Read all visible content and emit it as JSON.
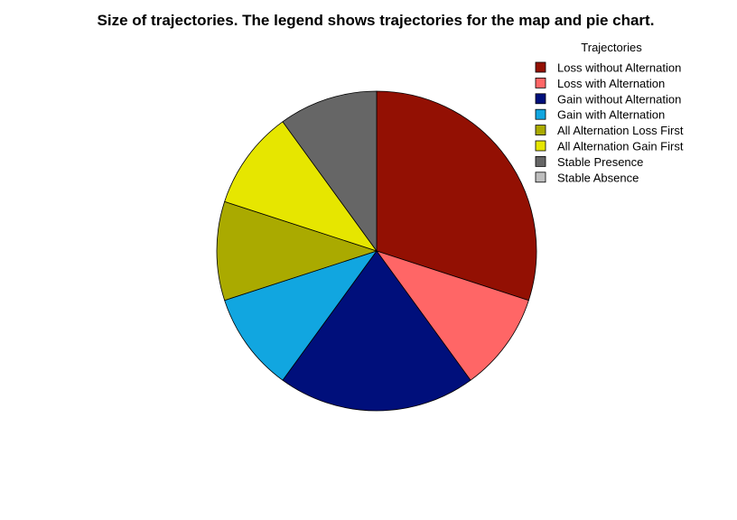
{
  "chart_data": {
    "type": "pie",
    "title": "Size of trajectories. The legend shows trajectories for the map and pie chart.",
    "legend": {
      "title": "Trajectories",
      "placement": "top-right"
    },
    "start": "12 o'clock",
    "direction": "clockwise",
    "slices": [
      {
        "label": "Loss without Alternation",
        "value": 30,
        "color": "#931003"
      },
      {
        "label": "Loss with Alternation",
        "value": 10,
        "color": "#FF6666"
      },
      {
        "label": "Gain without Alternation",
        "value": 20,
        "color": "#000F7B"
      },
      {
        "label": "Gain with Alternation",
        "value": 10,
        "color": "#11A6E0"
      },
      {
        "label": "All Alternation Loss First",
        "value": 10,
        "color": "#AAAA00"
      },
      {
        "label": "All Alternation Gain First",
        "value": 10,
        "color": "#E6E600"
      },
      {
        "label": "Stable Presence",
        "value": 10,
        "color": "#666666"
      },
      {
        "label": "Stable Absence",
        "value": 0,
        "color": "#BEBEBE"
      }
    ]
  }
}
